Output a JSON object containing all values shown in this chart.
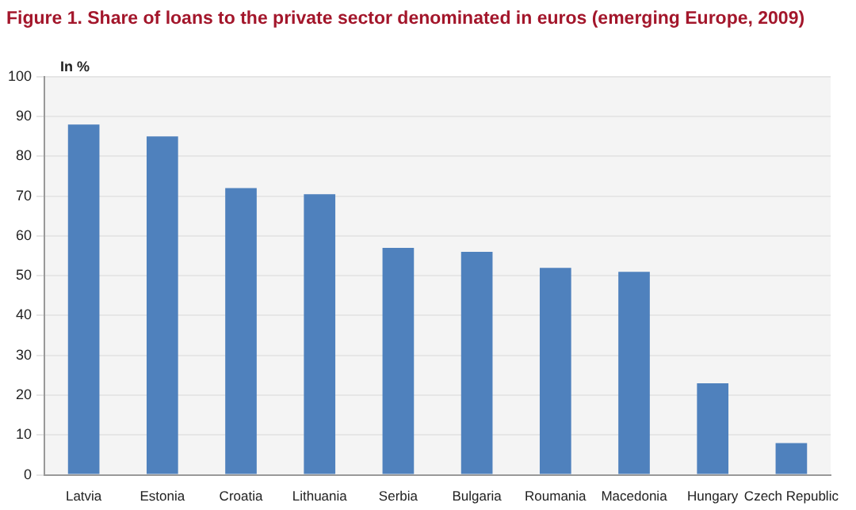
{
  "chart_data": {
    "type": "bar",
    "title": "Figure 1. Share of loans to the private sector denominated in euros (emerging Europe, 2009)",
    "ylabel": "In %",
    "categories": [
      "Latvia",
      "Estonia",
      "Croatia",
      "Lithuania",
      "Serbia",
      "Bulgaria",
      "Roumania",
      "Macedonia",
      "Hungary",
      "Czech Republic"
    ],
    "values": [
      88,
      85,
      72,
      70.5,
      57,
      56,
      52,
      51,
      23,
      8
    ],
    "color": "#4f81bd",
    "ylim": [
      0,
      100
    ],
    "yticks": [
      0,
      10,
      20,
      30,
      40,
      50,
      60,
      70,
      80,
      90,
      100
    ],
    "grid": "y"
  }
}
